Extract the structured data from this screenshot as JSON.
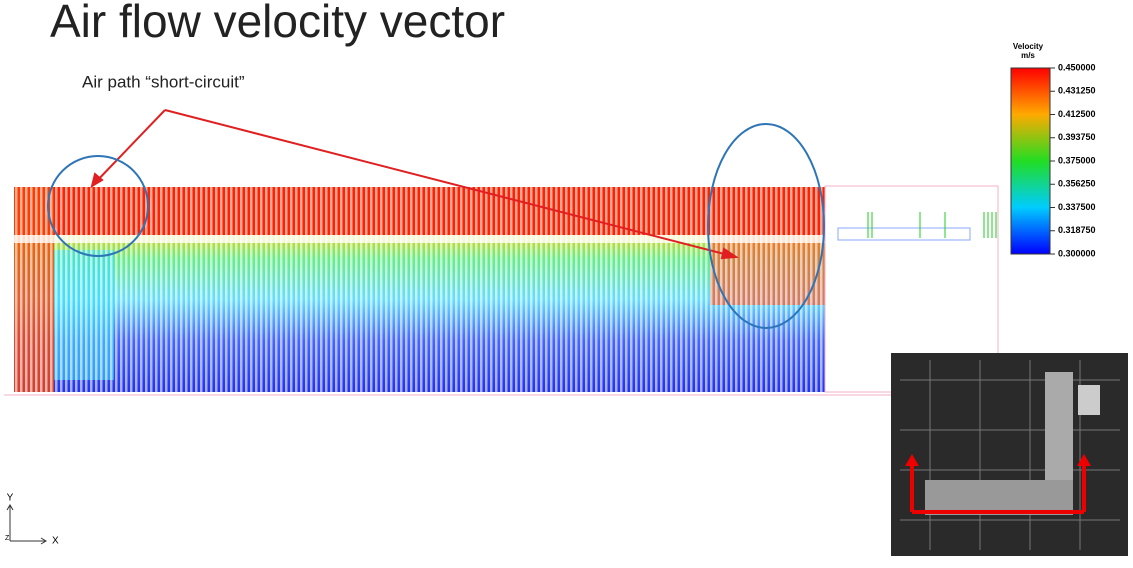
{
  "header": {
    "title": "Air flow velocity vector"
  },
  "annotation": "Air path “short-circuit”",
  "legend": {
    "title": "Velocity",
    "unit": "m/s",
    "labels": [
      "0.450000",
      "0.431250",
      "0.412500",
      "0.393750",
      "0.375000",
      "0.356250",
      "0.337500",
      "0.318750",
      "0.300000"
    ]
  },
  "axes": {
    "y": "Y",
    "x": "X",
    "z": "Z"
  }
}
